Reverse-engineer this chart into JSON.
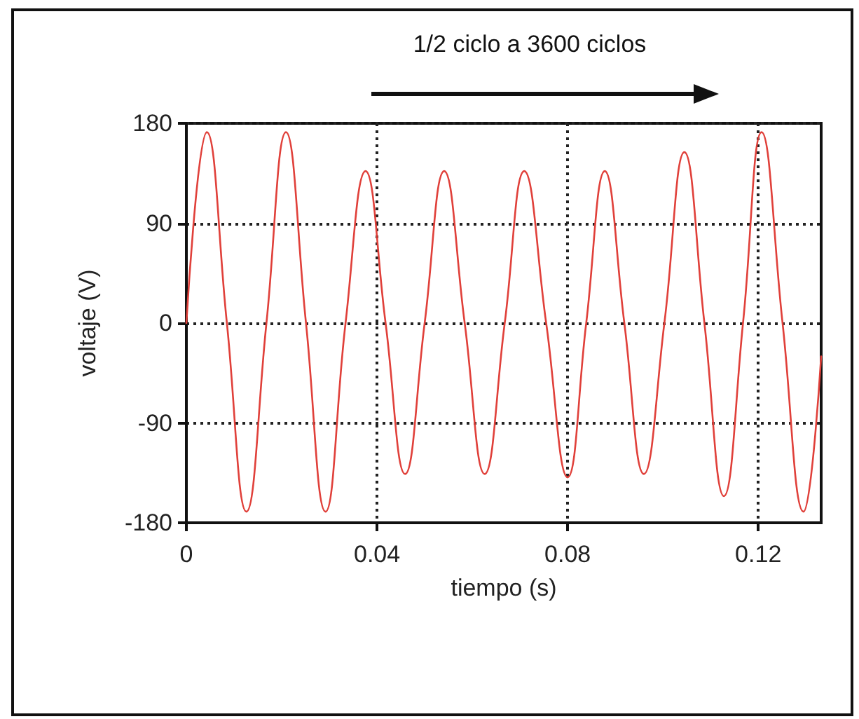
{
  "chart_data": {
    "type": "line",
    "xlabel": "tiempo (s)",
    "ylabel": "voltaje (V)",
    "annotations": [
      "1/2 ciclo a 3600 ciclos"
    ],
    "x": [
      0,
      0.0043,
      0.0085,
      0.0126,
      0.0168,
      0.0209,
      0.0251,
      0.0292,
      0.0334,
      0.0376,
      0.0418,
      0.0459,
      0.05,
      0.0541,
      0.0584,
      0.0626,
      0.0668,
      0.0709,
      0.0755,
      0.08,
      0.0839,
      0.0878,
      0.0919,
      0.096,
      0.1003,
      0.1045,
      0.1087,
      0.1128,
      0.1168,
      0.1207,
      0.1251,
      0.1295,
      0.1332
    ],
    "series": [
      {
        "color": "#e0403a",
        "values": [
          0,
          172,
          0,
          -170,
          0,
          172,
          0,
          -170,
          0,
          137,
          0,
          -136,
          0,
          137,
          0,
          -136,
          0,
          137,
          0,
          -139,
          0,
          137,
          0,
          -136,
          0,
          154,
          0,
          -156,
          0,
          172,
          0,
          -170,
          -30
        ]
      }
    ],
    "xlim": [
      0,
      0.1332
    ],
    "xticks": [
      0,
      0.04,
      0.08,
      0.12
    ],
    "ylim": [
      -180,
      180
    ],
    "yticks": [
      -180,
      -90,
      0,
      90,
      180
    ],
    "grid": true,
    "marker": "none",
    "line_style": "solid"
  }
}
